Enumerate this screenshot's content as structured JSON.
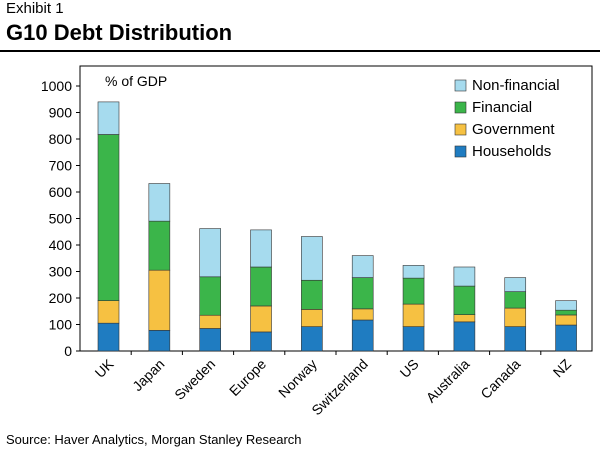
{
  "header": {
    "exhibit": "Exhibit 1",
    "title": "G10 Debt Distribution"
  },
  "footer": {
    "source": "Source: Haver Analytics, Morgan Stanley Research"
  },
  "colors": {
    "Households": "#1f7cc1",
    "Government": "#f6c142",
    "Financial": "#3bb54a",
    "Non-financial": "#a6dbee"
  },
  "chart_data": {
    "type": "bar",
    "stacked": true,
    "unit_label": "% of GDP",
    "categories": [
      "UK",
      "Japan",
      "Sweden",
      "Europe",
      "Norway",
      "Switzerland",
      "US",
      "Australia",
      "Canada",
      "NZ"
    ],
    "series": [
      {
        "name": "Households",
        "values": [
          105,
          78,
          85,
          72,
          92,
          117,
          92,
          110,
          92,
          98
        ]
      },
      {
        "name": "Government",
        "values": [
          85,
          227,
          50,
          98,
          65,
          42,
          85,
          27,
          70,
          38
        ]
      },
      {
        "name": "Financial",
        "values": [
          627,
          185,
          145,
          147,
          110,
          118,
          98,
          108,
          62,
          18
        ]
      },
      {
        "name": "Non-financial",
        "values": [
          123,
          142,
          182,
          140,
          165,
          83,
          48,
          72,
          53,
          36
        ]
      }
    ],
    "legend_order": [
      "Non-financial",
      "Financial",
      "Government",
      "Households"
    ],
    "legend_position": "top-right",
    "ylim": [
      0,
      1000
    ],
    "yticks": [
      0,
      100,
      200,
      300,
      400,
      500,
      600,
      700,
      800,
      900,
      1000
    ],
    "grid": false
  }
}
